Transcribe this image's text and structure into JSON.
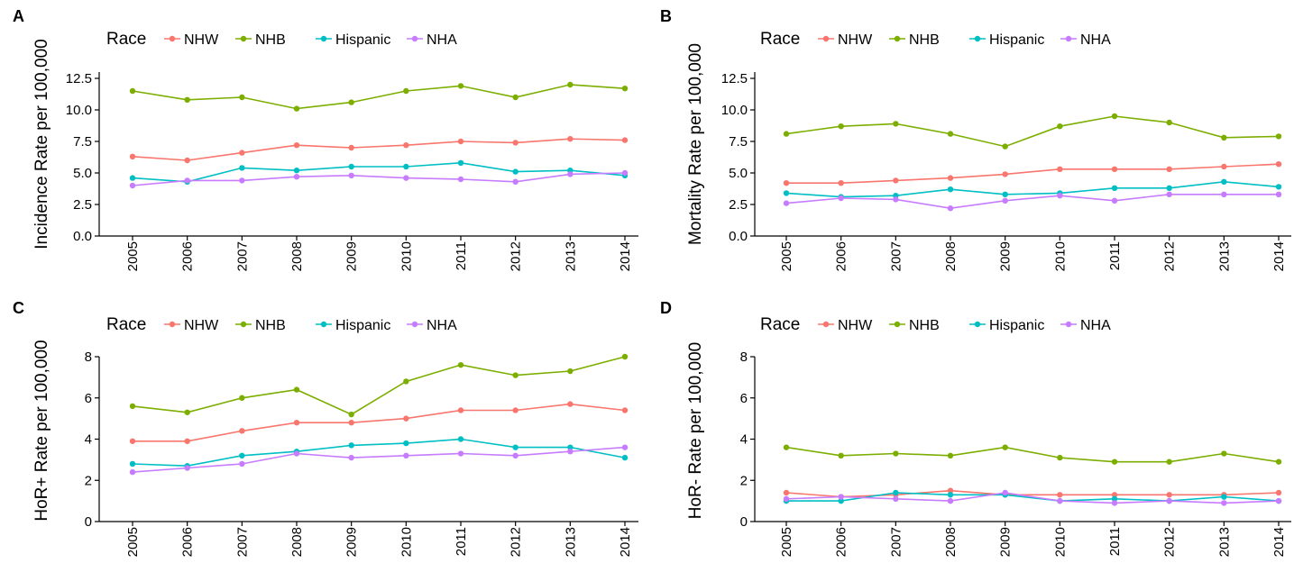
{
  "legend_title": "Race",
  "series_colors": {
    "NHW": "#F8766D",
    "NHB": "#7CAE00",
    "Hispanic": "#00BFC4",
    "NHA": "#C77CFF"
  },
  "chart_data": [
    {
      "panel": "A",
      "type": "line",
      "ylabel": "Incidence Rate per 100,000",
      "x": [
        "2005",
        "2006",
        "2007",
        "2008",
        "2009",
        "2010",
        "2011",
        "2012",
        "2013",
        "2014"
      ],
      "ylim": [
        0,
        13
      ],
      "yticks": [
        "0.0",
        "2.5",
        "5.0",
        "7.5",
        "10.0",
        "12.5"
      ],
      "ytick_values": [
        0,
        2.5,
        5,
        7.5,
        10,
        12.5
      ],
      "series": [
        {
          "name": "NHW",
          "values": [
            6.3,
            6.0,
            6.6,
            7.2,
            7.0,
            7.2,
            7.5,
            7.4,
            7.7,
            7.6
          ]
        },
        {
          "name": "NHB",
          "values": [
            11.5,
            10.8,
            11.0,
            10.1,
            10.6,
            11.5,
            11.9,
            11.0,
            12.0,
            11.7
          ]
        },
        {
          "name": "Hispanic",
          "values": [
            4.6,
            4.3,
            5.4,
            5.2,
            5.5,
            5.5,
            5.8,
            5.1,
            5.2,
            4.8
          ]
        },
        {
          "name": "NHA",
          "values": [
            4.0,
            4.4,
            4.4,
            4.7,
            4.8,
            4.6,
            4.5,
            4.3,
            4.9,
            5.0
          ]
        }
      ]
    },
    {
      "panel": "B",
      "type": "line",
      "ylabel": "Mortality Rate per 100,000",
      "x": [
        "2005",
        "2006",
        "2007",
        "2008",
        "2009",
        "2010",
        "2011",
        "2012",
        "2013",
        "2014"
      ],
      "ylim": [
        0,
        13
      ],
      "yticks": [
        "0.0",
        "2.5",
        "5.0",
        "7.5",
        "10.0",
        "12.5"
      ],
      "ytick_values": [
        0,
        2.5,
        5,
        7.5,
        10,
        12.5
      ],
      "series": [
        {
          "name": "NHW",
          "values": [
            4.2,
            4.2,
            4.4,
            4.6,
            4.9,
            5.3,
            5.3,
            5.3,
            5.5,
            5.7
          ]
        },
        {
          "name": "NHB",
          "values": [
            8.1,
            8.7,
            8.9,
            8.1,
            7.1,
            8.7,
            9.5,
            9.0,
            7.8,
            7.9
          ]
        },
        {
          "name": "Hispanic",
          "values": [
            3.4,
            3.1,
            3.2,
            3.7,
            3.3,
            3.4,
            3.8,
            3.8,
            4.3,
            3.9
          ]
        },
        {
          "name": "NHA",
          "values": [
            2.6,
            3.0,
            2.9,
            2.2,
            2.8,
            3.2,
            2.8,
            3.3,
            3.3,
            3.3
          ]
        }
      ]
    },
    {
      "panel": "C",
      "type": "line",
      "ylabel": "HoR+ Rate per 100,000",
      "x": [
        "2005",
        "2006",
        "2007",
        "2008",
        "2009",
        "2010",
        "2011",
        "2012",
        "2013",
        "2014"
      ],
      "ylim": [
        0,
        8
      ],
      "yticks": [
        "0",
        "2",
        "4",
        "6",
        "8"
      ],
      "ytick_values": [
        0,
        2,
        4,
        6,
        8
      ],
      "series": [
        {
          "name": "NHW",
          "values": [
            3.9,
            3.9,
            4.4,
            4.8,
            4.8,
            5.0,
            5.4,
            5.4,
            5.7,
            5.4
          ]
        },
        {
          "name": "NHB",
          "values": [
            5.6,
            5.3,
            6.0,
            6.4,
            5.2,
            6.8,
            7.6,
            7.1,
            7.3,
            8.0
          ]
        },
        {
          "name": "Hispanic",
          "values": [
            2.8,
            2.7,
            3.2,
            3.4,
            3.7,
            3.8,
            4.0,
            3.6,
            3.6,
            3.1
          ]
        },
        {
          "name": "NHA",
          "values": [
            2.4,
            2.6,
            2.8,
            3.3,
            3.1,
            3.2,
            3.3,
            3.2,
            3.4,
            3.6
          ]
        }
      ]
    },
    {
      "panel": "D",
      "type": "line",
      "ylabel": "HoR- Rate per 100,000",
      "x": [
        "2005",
        "2006",
        "2007",
        "2008",
        "2009",
        "2010",
        "2011",
        "2012",
        "2013",
        "2014"
      ],
      "ylim": [
        0,
        8
      ],
      "yticks": [
        "0",
        "2",
        "4",
        "6",
        "8"
      ],
      "ytick_values": [
        0,
        2,
        4,
        6,
        8
      ],
      "series": [
        {
          "name": "NHW",
          "values": [
            1.4,
            1.2,
            1.3,
            1.5,
            1.3,
            1.3,
            1.3,
            1.3,
            1.3,
            1.4
          ]
        },
        {
          "name": "NHB",
          "values": [
            3.6,
            3.2,
            3.3,
            3.2,
            3.6,
            3.1,
            2.9,
            2.9,
            3.3,
            2.9
          ]
        },
        {
          "name": "Hispanic",
          "values": [
            1.0,
            1.0,
            1.4,
            1.3,
            1.3,
            1.0,
            1.1,
            1.0,
            1.2,
            1.0
          ]
        },
        {
          "name": "NHA",
          "values": [
            1.1,
            1.2,
            1.1,
            1.0,
            1.4,
            1.0,
            0.9,
            1.0,
            0.9,
            1.0
          ]
        }
      ]
    }
  ]
}
